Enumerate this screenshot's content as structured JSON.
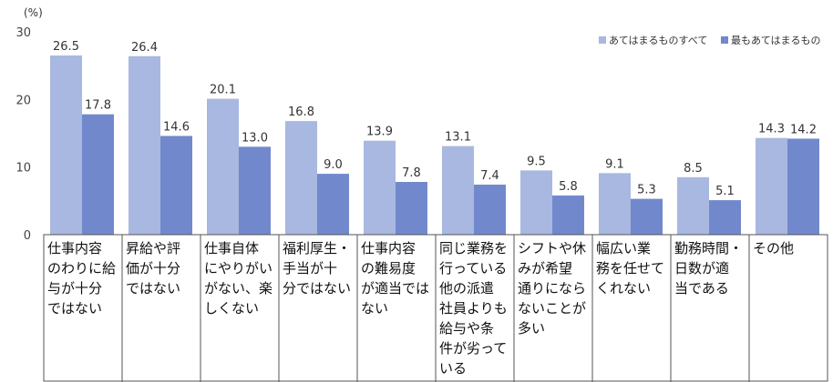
{
  "chart_data": {
    "type": "bar",
    "unit": "(%)",
    "ylim": [
      0,
      30
    ],
    "yticks": [
      0,
      10,
      20,
      30
    ],
    "grid": false,
    "legend_position": "top-right",
    "categories": [
      [
        "仕事内容",
        "のわりに給",
        "与が十分",
        "ではない"
      ],
      [
        "昇給や評",
        "価が十分",
        "ではない"
      ],
      [
        "仕事自体",
        "にやりがい",
        "がない、楽",
        "しくない"
      ],
      [
        "福利厚生・",
        "手当が十",
        "分ではない"
      ],
      [
        "仕事内容",
        "の難易度",
        "が適当では",
        "ない"
      ],
      [
        "同じ業務を",
        "行っている",
        "他の派遣",
        "社員よりも",
        "給与や条",
        "件が劣って",
        "いる"
      ],
      [
        "シフトや休",
        "みが希望",
        "通りになら",
        "ないことが",
        "多い"
      ],
      [
        "幅広い業",
        "務を任せて",
        "くれない"
      ],
      [
        "勤務時間・",
        "日数が適",
        "当である"
      ],
      [
        "その他"
      ]
    ],
    "series": [
      {
        "name": "あてはまるものすべて",
        "color": "#a9b8e0",
        "values": [
          26.5,
          26.4,
          20.1,
          16.8,
          13.9,
          13.1,
          9.5,
          9.1,
          8.5,
          14.3
        ]
      },
      {
        "name": "最もあてはまるもの",
        "color": "#7189cc",
        "values": [
          17.8,
          14.6,
          13.0,
          9.0,
          7.8,
          7.4,
          5.8,
          5.3,
          5.1,
          14.2
        ]
      }
    ]
  }
}
